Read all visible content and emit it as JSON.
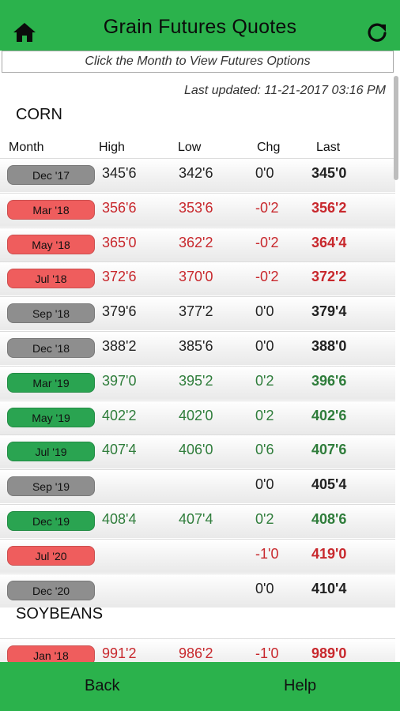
{
  "header": {
    "title": "Grain Futures Quotes",
    "home_icon": "home-icon",
    "refresh_icon": "refresh-icon"
  },
  "banner": "Click the Month to View Futures Options",
  "last_updated": "Last updated: 11-21-2017 03:16 PM",
  "columns": {
    "month": "Month",
    "high": "High",
    "low": "Low",
    "chg": "Chg",
    "last": "Last"
  },
  "colors": {
    "up": "#2aa451",
    "down": "#ef5d5d",
    "neutral": "#8e8e8e",
    "brand": "#2bb24c"
  },
  "sections": [
    {
      "name": "CORN",
      "rows": [
        {
          "month": "Dec '17",
          "high": "345'6",
          "low": "342'6",
          "chg": "0'0",
          "last": "345'0",
          "status": "neutral"
        },
        {
          "month": "Mar '18",
          "high": "356'6",
          "low": "353'6",
          "chg": "-0'2",
          "last": "356'2",
          "status": "down"
        },
        {
          "month": "May '18",
          "high": "365'0",
          "low": "362'2",
          "chg": "-0'2",
          "last": "364'4",
          "status": "down"
        },
        {
          "month": "Jul '18",
          "high": "372'6",
          "low": "370'0",
          "chg": "-0'2",
          "last": "372'2",
          "status": "down"
        },
        {
          "month": "Sep '18",
          "high": "379'6",
          "low": "377'2",
          "chg": "0'0",
          "last": "379'4",
          "status": "neutral"
        },
        {
          "month": "Dec '18",
          "high": "388'2",
          "low": "385'6",
          "chg": "0'0",
          "last": "388'0",
          "status": "neutral"
        },
        {
          "month": "Mar '19",
          "high": "397'0",
          "low": "395'2",
          "chg": "0'2",
          "last": "396'6",
          "status": "up"
        },
        {
          "month": "May '19",
          "high": "402'2",
          "low": "402'0",
          "chg": "0'2",
          "last": "402'6",
          "status": "up"
        },
        {
          "month": "Jul '19",
          "high": "407'4",
          "low": "406'0",
          "chg": "0'6",
          "last": "407'6",
          "status": "up"
        },
        {
          "month": "Sep '19",
          "high": "",
          "low": "",
          "chg": "0'0",
          "last": "405'4",
          "status": "neutral"
        },
        {
          "month": "Dec '19",
          "high": "408'4",
          "low": "407'4",
          "chg": "0'2",
          "last": "408'6",
          "status": "up"
        },
        {
          "month": "Jul '20",
          "high": "",
          "low": "",
          "chg": "-1'0",
          "last": "419'0",
          "status": "down"
        },
        {
          "month": "Dec '20",
          "high": "",
          "low": "",
          "chg": "0'0",
          "last": "410'4",
          "status": "neutral"
        }
      ]
    },
    {
      "name": "SOYBEANS",
      "rows": [
        {
          "month": "Jan '18",
          "high": "991'2",
          "low": "986'2",
          "chg": "-1'0",
          "last": "989'0",
          "status": "down"
        }
      ]
    }
  ],
  "footer": {
    "back": "Back",
    "help": "Help"
  }
}
